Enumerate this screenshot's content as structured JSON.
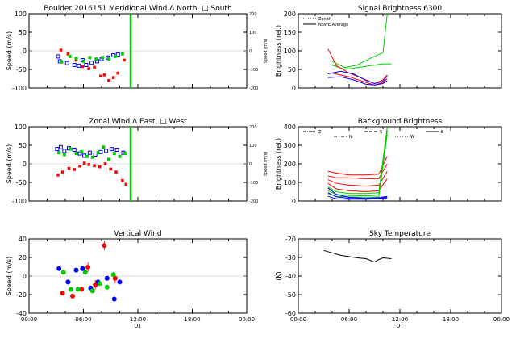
{
  "colors": {
    "north": "#ff0000",
    "south": "#0000ff",
    "green": "#00cc00",
    "black": "#000000"
  },
  "chart_data": [
    {
      "id": "meridional",
      "type": "scatter",
      "title": "Boulder   2016151      Meridional Wind   Δ North, □ South",
      "ylabel": "Speed (m/s)",
      "y2label": "Speed (m/s)",
      "xlim": [
        0,
        24
      ],
      "ylim": [
        -100,
        100
      ],
      "y2lim": [
        -200,
        200
      ],
      "xticks": [],
      "yticks": [
        "100",
        "50",
        "0",
        "-50",
        "-100"
      ],
      "y2ticks": [
        "200",
        "100",
        "0",
        "-100",
        "-200"
      ],
      "vline_x": 11.2,
      "series": [
        {
          "color": "red",
          "points": [
            [
              3.5,
              2
            ],
            [
              4.3,
              -8
            ],
            [
              5.2,
              -25
            ],
            [
              5.9,
              -42
            ],
            [
              6.6,
              -48
            ],
            [
              7.2,
              -44
            ],
            [
              7.9,
              -68
            ],
            [
              8.3,
              -65
            ],
            [
              8.8,
              -80
            ],
            [
              9.3,
              -72
            ],
            [
              9.8,
              -60
            ],
            [
              10.5,
              -25
            ]
          ]
        },
        {
          "color": "blue",
          "points": [
            [
              3.2,
              -15
            ],
            [
              3.4,
              -28
            ],
            [
              4.2,
              -33
            ],
            [
              5.0,
              -38
            ],
            [
              5.5,
              -40
            ],
            [
              5.9,
              -25
            ],
            [
              6.3,
              -38
            ],
            [
              6.9,
              -32
            ],
            [
              7.5,
              -28
            ],
            [
              8.0,
              -22
            ],
            [
              8.7,
              -18
            ],
            [
              9.3,
              -12
            ],
            [
              9.8,
              -10
            ]
          ]
        },
        {
          "color": "green",
          "points": [
            [
              3.6,
              -30
            ],
            [
              4.5,
              -15
            ],
            [
              5.2,
              -20
            ],
            [
              6.0,
              -28
            ],
            [
              6.7,
              -18
            ],
            [
              7.4,
              -22
            ],
            [
              8.1,
              -18
            ],
            [
              8.8,
              -22
            ],
            [
              9.5,
              -15
            ],
            [
              10.3,
              -8
            ]
          ]
        }
      ]
    },
    {
      "id": "brightness",
      "type": "line",
      "title": "Signal Brightness        6300",
      "ylabel": "Brightness (rel.)",
      "xlim": [
        0,
        24
      ],
      "ylim": [
        0,
        200
      ],
      "xticks": [],
      "yticks": [
        "200",
        "150",
        "100",
        "50",
        "0"
      ],
      "legend": [
        {
          "label": "Zenith",
          "style": "dotted"
        },
        {
          "label": "NSWE Average",
          "style": "solid"
        }
      ],
      "series": [
        {
          "color": "green",
          "points": [
            [
              4,
              72
            ],
            [
              5.5,
              55
            ],
            [
              7,
              62
            ],
            [
              8.5,
              80
            ],
            [
              10,
              95
            ],
            [
              10.5,
              200
            ]
          ]
        },
        {
          "color": "green",
          "points": [
            [
              4,
              62
            ],
            [
              5.5,
              50
            ],
            [
              7,
              55
            ],
            [
              8.5,
              60
            ],
            [
              10,
              65
            ],
            [
              11,
              65
            ]
          ]
        },
        {
          "color": "red",
          "points": [
            [
              3.5,
              105
            ],
            [
              4.5,
              60
            ],
            [
              6,
              40
            ],
            [
              8,
              22
            ],
            [
              9,
              12
            ],
            [
              10,
              22
            ],
            [
              10.5,
              35
            ]
          ]
        },
        {
          "color": "red",
          "points": [
            [
              4,
              40
            ],
            [
              6,
              30
            ],
            [
              8,
              15
            ],
            [
              9,
              8
            ],
            [
              10,
              15
            ],
            [
              10.5,
              25
            ]
          ]
        },
        {
          "color": "blue",
          "points": [
            [
              3.5,
              38
            ],
            [
              5,
              45
            ],
            [
              6.5,
              38
            ],
            [
              8,
              20
            ],
            [
              9,
              12
            ],
            [
              10,
              18
            ],
            [
              10.5,
              32
            ]
          ]
        },
        {
          "color": "blue",
          "points": [
            [
              3.5,
              28
            ],
            [
              5,
              30
            ],
            [
              6.5,
              22
            ],
            [
              8,
              10
            ],
            [
              9,
              8
            ],
            [
              10,
              12
            ],
            [
              10.5,
              20
            ]
          ]
        }
      ]
    },
    {
      "id": "zonal",
      "type": "scatter",
      "title": "Zonal Wind        Δ East, □ West",
      "ylabel": "Speed (m/s)",
      "y2label": "Speed (m/s)",
      "xlim": [
        0,
        24
      ],
      "ylim": [
        -100,
        100
      ],
      "y2lim": [
        -200,
        200
      ],
      "xticks": [],
      "yticks": [
        "100",
        "50",
        "0",
        "-50",
        "-100"
      ],
      "y2ticks": [
        "200",
        "100",
        "0",
        "-100",
        "-200"
      ],
      "vline_x": 11.2,
      "series": [
        {
          "color": "red",
          "points": [
            [
              3.2,
              -30
            ],
            [
              3.7,
              -22
            ],
            [
              4.4,
              -12
            ],
            [
              5.0,
              -15
            ],
            [
              5.6,
              -6
            ],
            [
              6.1,
              2
            ],
            [
              6.6,
              -2
            ],
            [
              7.2,
              -5
            ],
            [
              7.8,
              -8
            ],
            [
              8.4,
              0
            ],
            [
              9.0,
              -14
            ],
            [
              9.6,
              -22
            ],
            [
              10.3,
              -45
            ],
            [
              10.7,
              -55
            ]
          ]
        },
        {
          "color": "blue",
          "points": [
            [
              3.1,
              40
            ],
            [
              3.5,
              45
            ],
            [
              3.9,
              35
            ],
            [
              4.4,
              42
            ],
            [
              5.0,
              38
            ],
            [
              5.6,
              28
            ],
            [
              6.1,
              22
            ],
            [
              6.7,
              30
            ],
            [
              7.3,
              25
            ],
            [
              7.9,
              32
            ],
            [
              8.5,
              35
            ],
            [
              9.1,
              40
            ],
            [
              9.7,
              38
            ],
            [
              10.4,
              30
            ]
          ]
        },
        {
          "color": "green",
          "points": [
            [
              3.3,
              30
            ],
            [
              3.9,
              25
            ],
            [
              4.6,
              40
            ],
            [
              5.2,
              28
            ],
            [
              5.8,
              33
            ],
            [
              6.4,
              20
            ],
            [
              7.0,
              18
            ],
            [
              7.6,
              30
            ],
            [
              8.2,
              45
            ],
            [
              8.8,
              12
            ],
            [
              9.4,
              28
            ],
            [
              10.0,
              20
            ],
            [
              10.6,
              28
            ]
          ]
        }
      ]
    },
    {
      "id": "background",
      "type": "line",
      "title": "Background Brightness",
      "ylabel": "Brightness (rel.)",
      "xlim": [
        0,
        24
      ],
      "ylim": [
        0,
        400
      ],
      "xticks": [],
      "yticks": [
        "400",
        "300",
        "200",
        "100",
        "0"
      ],
      "legend": [
        {
          "label": "Z",
          "style": "dashdotdot"
        },
        {
          "label": "N",
          "style": "dashdot"
        },
        {
          "label": "S",
          "style": "dashed"
        },
        {
          "label": "W",
          "style": "dotted"
        },
        {
          "label": "E",
          "style": "solid"
        }
      ],
      "series": [
        {
          "color": "red",
          "points": [
            [
              3.5,
              160
            ],
            [
              4.5,
              150
            ],
            [
              6,
              140
            ],
            [
              8,
              140
            ],
            [
              9.5,
              145
            ],
            [
              10.5,
              240
            ]
          ]
        },
        {
          "color": "red",
          "points": [
            [
              3.5,
              135
            ],
            [
              4.5,
              125
            ],
            [
              6,
              125
            ],
            [
              8,
              120
            ],
            [
              9.5,
              120
            ],
            [
              10.5,
              200
            ]
          ]
        },
        {
          "color": "red",
          "points": [
            [
              3.5,
              115
            ],
            [
              4.5,
              95
            ],
            [
              6,
              85
            ],
            [
              8,
              80
            ],
            [
              9.5,
              85
            ],
            [
              10.5,
              160
            ]
          ]
        },
        {
          "color": "red",
          "points": [
            [
              3.5,
              95
            ],
            [
              4.5,
              65
            ],
            [
              6,
              55
            ],
            [
              8,
              50
            ],
            [
              9.5,
              55
            ],
            [
              10.5,
              120
            ]
          ]
        },
        {
          "color": "green",
          "points": [
            [
              3.5,
              75
            ],
            [
              4.5,
              50
            ],
            [
              6,
              40
            ],
            [
              8,
              40
            ],
            [
              9.5,
              45
            ],
            [
              10.5,
              400
            ]
          ]
        },
        {
          "color": "green",
          "points": [
            [
              3.5,
              55
            ],
            [
              4.5,
              35
            ],
            [
              6,
              30
            ],
            [
              8,
              28
            ],
            [
              9.5,
              32
            ],
            [
              10.5,
              380
            ]
          ]
        },
        {
          "color": "green",
          "points": [
            [
              3.5,
              40
            ],
            [
              4.5,
              25
            ],
            [
              6,
              22
            ],
            [
              8,
              20
            ],
            [
              9.5,
              22
            ],
            [
              10.5,
              360
            ]
          ]
        },
        {
          "color": "blue",
          "points": [
            [
              3.5,
              70
            ],
            [
              4.5,
              35
            ],
            [
              6,
              20
            ],
            [
              8,
              15
            ],
            [
              9.5,
              18
            ],
            [
              10.5,
              25
            ]
          ]
        },
        {
          "color": "blue",
          "points": [
            [
              3.5,
              45
            ],
            [
              4.5,
              22
            ],
            [
              6,
              15
            ],
            [
              8,
              12
            ],
            [
              9.5,
              15
            ],
            [
              10.5,
              20
            ]
          ]
        },
        {
          "color": "blue",
          "points": [
            [
              3.5,
              25
            ],
            [
              4.5,
              12
            ],
            [
              6,
              10
            ],
            [
              8,
              10
            ],
            [
              9.5,
              12
            ],
            [
              10.5,
              15
            ]
          ]
        }
      ]
    },
    {
      "id": "vertical",
      "type": "scatter",
      "title": "Vertical Wind",
      "ylabel": "Speed (m/s)",
      "xlabel": "UT",
      "xlim": [
        0,
        24
      ],
      "ylim": [
        -50,
        50
      ],
      "xticks": [
        "00:00",
        "06:00",
        "12:00",
        "18:00",
        "00:00"
      ],
      "yticks": [
        "40",
        "20",
        "0",
        "-20",
        "-40"
      ],
      "series": [
        {
          "color": "red",
          "points": [
            [
              3.7,
              -23
            ],
            [
              4.8,
              -27
            ],
            [
              5.8,
              -18
            ],
            [
              6.5,
              12
            ],
            [
              7.3,
              -12
            ],
            [
              8.3,
              41
            ],
            [
              9.5,
              -3
            ]
          ]
        },
        {
          "color": "blue",
          "points": [
            [
              3.3,
              10
            ],
            [
              4.3,
              -8
            ],
            [
              5.2,
              8
            ],
            [
              5.9,
              10
            ],
            [
              6.8,
              -16
            ],
            [
              7.6,
              -8
            ],
            [
              8.6,
              -3
            ],
            [
              9.4,
              -31
            ],
            [
              10.0,
              -8
            ]
          ]
        },
        {
          "color": "green",
          "points": [
            [
              3.8,
              5
            ],
            [
              4.6,
              -18
            ],
            [
              5.4,
              -18
            ],
            [
              6.2,
              5
            ],
            [
              7.0,
              -20
            ],
            [
              7.8,
              -10
            ],
            [
              8.6,
              -15
            ],
            [
              9.3,
              2
            ]
          ]
        }
      ]
    },
    {
      "id": "sky",
      "type": "line",
      "title": "Sky Temperature",
      "ylabel": "(K)",
      "xlabel": "UT",
      "xlim": [
        0,
        24
      ],
      "ylim": [
        -60,
        -15
      ],
      "xticks": [
        "00:00",
        "06:00",
        "12:00",
        "18:00",
        "00:00"
      ],
      "yticks": [
        "-20",
        "-30",
        "-40",
        "-50",
        "-60"
      ],
      "series": [
        {
          "color": "black",
          "points": [
            [
              3,
              -22
            ],
            [
              5,
              -25
            ],
            [
              7,
              -26.5
            ],
            [
              8,
              -27
            ],
            [
              9,
              -29
            ],
            [
              9.5,
              -27.5
            ],
            [
              10,
              -26.5
            ],
            [
              11,
              -27
            ]
          ]
        }
      ]
    }
  ]
}
